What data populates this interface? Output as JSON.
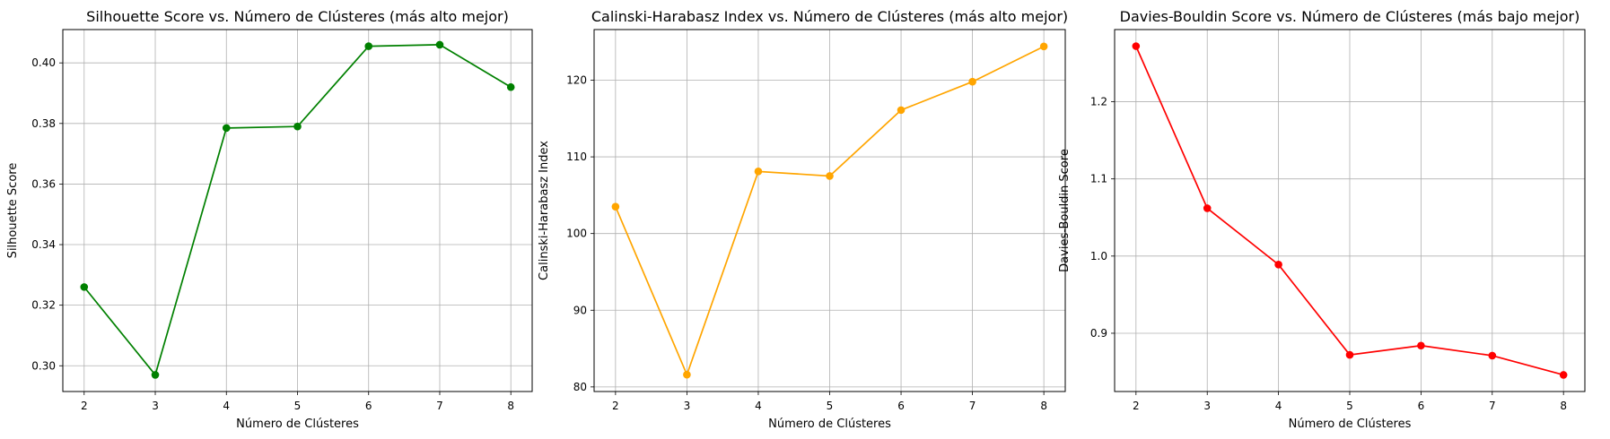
{
  "chart_data": [
    {
      "type": "line",
      "title": "Silhouette Score vs. Número de Clústeres (más alto mejor)",
      "xlabel": "Número de Clústeres",
      "ylabel": "Silhouette Score",
      "x": [
        2,
        3,
        4,
        5,
        6,
        7,
        8
      ],
      "series": [
        {
          "values": [
            0.326,
            0.297,
            0.3785,
            0.379,
            0.4055,
            0.406,
            0.392
          ],
          "color": "#008000"
        }
      ],
      "xlim": [
        1.7,
        8.3
      ],
      "ylim": [
        0.2915,
        0.411
      ],
      "xticks": [
        2,
        3,
        4,
        5,
        6,
        7,
        8
      ],
      "yticks": [
        0.3,
        0.32,
        0.34,
        0.36,
        0.38,
        0.4
      ],
      "yticklabels": [
        "0.30",
        "0.32",
        "0.34",
        "0.36",
        "0.38",
        "0.40"
      ],
      "grid": true,
      "marker": "circle"
    },
    {
      "type": "line",
      "title": "Calinski-Harabasz Index vs. Número de Clústeres (más alto mejor)",
      "xlabel": "Número de Clústeres",
      "ylabel": "Calinski-Harabasz Index",
      "x": [
        2,
        3,
        4,
        5,
        6,
        7,
        8
      ],
      "series": [
        {
          "values": [
            103.5,
            81.6,
            108.1,
            107.5,
            116.1,
            119.8,
            124.4
          ],
          "color": "#FFA500"
        }
      ],
      "xlim": [
        1.7,
        8.3
      ],
      "ylim": [
        79.4,
        126.6
      ],
      "xticks": [
        2,
        3,
        4,
        5,
        6,
        7,
        8
      ],
      "yticks": [
        80,
        90,
        100,
        110,
        120
      ],
      "yticklabels": [
        "80",
        "90",
        "100",
        "110",
        "120"
      ],
      "grid": true,
      "marker": "circle"
    },
    {
      "type": "line",
      "title": "Davies-Bouldin Score vs. Número de Clústeres (más bajo mejor)",
      "xlabel": "Número de Clústeres",
      "ylabel": "Davies-Bouldin Score",
      "x": [
        2,
        3,
        4,
        5,
        6,
        7,
        8
      ],
      "series": [
        {
          "values": [
            1.272,
            1.062,
            0.989,
            0.872,
            0.884,
            0.871,
            0.846
          ],
          "color": "#FF0000"
        }
      ],
      "xlim": [
        1.7,
        8.3
      ],
      "ylim": [
        0.8245,
        1.2935
      ],
      "xticks": [
        2,
        3,
        4,
        5,
        6,
        7,
        8
      ],
      "yticks": [
        0.9,
        1.0,
        1.1,
        1.2
      ],
      "yticklabels": [
        "0.9",
        "1.0",
        "1.1",
        "1.2"
      ],
      "grid": true,
      "marker": "circle"
    }
  ]
}
